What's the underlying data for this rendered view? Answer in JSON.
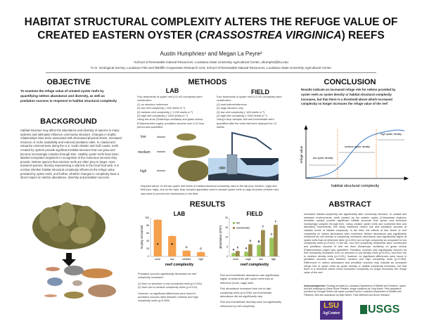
{
  "title_line1": "HABITAT STRUCTURAL COMPLEXITY ALTERS THE REFUGE VALUE OF",
  "title_line2_pre": "CREATED EASTERN OYSTER (",
  "title_line2_italic": "CRASSOSTREA VIRGINICA",
  "title_line2_post": ") REEFS",
  "authors": "Austin Humphries¹ and Megan La Peyre²",
  "affiliation1": "¹School of Renewable Natural Resources, Louisiana State University Agricultural Center, ahumph3@lsu.edu",
  "affiliation2": "²U.S. Geological Survey, Louisiana Fish and Wildlife Cooperative Research Unit, School of Renewable Natural Resources, Louisiana State University Agricultural Center",
  "objective": {
    "heading": "OBJECTIVE",
    "text": "To examine the refuge value of created oyster reefs by quantifying nekton abundance and diversity, as well as predation success in response to habitat structural complexity"
  },
  "background": {
    "heading": "BACKGROUND",
    "text": "Habitat structure may affect the abundance and diversity of species in many systems and ultimately influence community structure. Changes in trophic relationships have been associated with decreased physical stress, increased resource or niche availability and reduced predation rates. In coastal and estuarine environments along the U.S. south Atlantic and Gulf coasts, reefs created by oysters provide significant habitat structure that can grow and become increasingly complex through time. Healthy oyster reefs have been labeled ecosystem engineers in recognition of the numerous services they provide. Nekton species that colonize reefs are often prey to larger, more transient species, thereby representing a vital link in the local food web. It is unclear whether habitat structural complexity influences the refuge value provided by oyster reefs, and further, whether changes in complexity have a direct impact on nekton abundance, diversity and predation success."
  },
  "methods": {
    "heading": "METHODS",
    "lab": {
      "heading": "LAB",
      "text_intro": "Four treatments of oyster reef (0.5 m²) complexity were constructed:",
      "items": [
        "(1) no structure /reference",
        "(2) low reef complexity (~400 shells m⁻²)",
        "(3) medium reef complexity (~1,200 shells m⁻²)",
        "(4) high reef complexity (~2400 shells m⁻²)"
      ],
      "text_outro": "Using red drum (Sciaenops ocellatus) and grass shrimp (Palaemonetes pugio), predation success over a 22 hour period was quantified",
      "labels": [
        "low",
        "medium",
        "high"
      ]
    },
    "field": {
      "heading": "FIELD",
      "text_intro": "Four treatments of oyster reef (0.5 m²) complexity were constructed:",
      "items": [
        "(1)  mud bottom/reference",
        "(2)  cage structure only",
        "(3)  low reef complexity (~400 shells m⁻²)",
        "(4)  high reef complexity (~2400 shells m⁻²)"
      ],
      "text_outro": "Using a drop sampler, fish and invertebrate were quantified after the reefs had been deployed for 12 weeks"
    },
    "caption": "Depicted above on left are oyster reef levels of habitat structural complexity used in the lab (low, medium, high) and field (low, high), and on the right, drop sampler apparatus used to sample oyster reefs or cage structure (chicken wire was used to prevent reef destruction) in the field."
  },
  "results": {
    "heading": "RESULTS",
    "lab_text": [
      "Predation success significantly decreased as reef complexity increased:",
      "(1) from no structure to low complexity reefs (p<0.001)",
      "(2) from low to medium complexity reefs (p=0.011)",
      "However, no significant differences were found in predation success rates between medium and high complexity reefs (p=0.283)"
    ],
    "field_text": [
      "Fish and invertebrate abundance was significantly higher at treatments with oyster reefs than at reference (none, cage) sites",
      "Fish abundance increased from low to high complexity reefs (p=0.008), but invertebrate abundance did not significantly vary",
      "Fish and invertebrate diversity were not significantly influenced by reef complexity"
    ]
  },
  "chart_data": [
    {
      "type": "bar",
      "title": "LAB",
      "xlabel": "reef complexity",
      "ylabel": "% prey consumed",
      "ylim": [
        0,
        100
      ],
      "yticks": [
        0,
        20,
        40,
        60,
        80,
        100
      ],
      "categories": [
        "none",
        "low",
        "medium",
        "high"
      ],
      "values": [
        95,
        53,
        15,
        11
      ],
      "letters": [
        "A",
        "B",
        "C",
        "C"
      ],
      "color": "#f5a04b",
      "grid": false
    },
    {
      "type": "bar",
      "title": "FIELD",
      "xlabel": "reef complexity",
      "ylabel": "abundance (#/m²)",
      "ylim": [
        0,
        20
      ],
      "yticks": [
        0,
        5,
        10,
        15,
        20
      ],
      "categories": [
        "none",
        "cage",
        "low",
        "high"
      ],
      "legend": "top-left",
      "series": [
        {
          "name": "fish",
          "values": [
            1.7,
            2.4,
            5.9,
            9.6
          ],
          "letters": [
            "A",
            "A",
            "B",
            "C"
          ],
          "color": "#9bc55b"
        },
        {
          "name": "invertebrates",
          "values": [
            2.8,
            6.3,
            13.6,
            16.3
          ],
          "letters": [
            "X",
            "X",
            "Y",
            "Y"
          ],
          "color": "#9c8a4d"
        }
      ],
      "grid": false
    }
  ],
  "conclusion": {
    "heading": "CONCLUSION",
    "text": "Results indicate an increased refuge role for nekton provided by oyster reefs as oyster density or habitat structural complexity increases, but that there is a threshold above which increased complexity no longer increases the refuge value of the reef",
    "diagram": {
      "ylabel": "refuge value",
      "xlabel": "habitat structural complexity",
      "zones": [
        "low oyster density",
        "medium oyster density",
        "high oyster density"
      ]
    }
  },
  "abstract": {
    "heading": "ABSTRACT",
    "text": "Increased habitat complexity can significantly alter community structure. In coastal and estuarine environments, reefs created by the eastern oyster (Crassostrea virginica; hereafter oyster) provide significant habitat structure that grows and becomes increasingly complex through time. Using created oyster reefs and combined field and laboratory experiments, this study examined nekton use and predation success at variable levels of habitat complexity. In the field, the effects of four levels of reef complexity on nekton abundance were examined. Nekton abundance was significantly enhanced as reef density or complexity increased; abundance was significantly higher at oyster reefs than at reference sites (p<0.001) and at high complexity as compared to low complexity reefs (p=0.021). In the lab, four reef complexity treatments were constructed and predation success of wild red drum (Sciaenops ocellatus) on grass shrimp (Palaemonetes pugio) was quantified. Predation success was significantly reduced as reef complexity increased: from no structure to low density reefs (p<0.001), and from low to medium density reefs (p=0.011); however, no significant differences were found in predation success rates between medium and high complexity reefs (p=0.283). Differences in nekton abundance and predation success may indicate an increased refuge role of oyster reefs as oyster density or habitat complexity increases, but that there is a threshold above which increased complexity no longer increases the refuge value of the reef.",
    "ack_label": "Acknowledgments:",
    "ack": "Funding provided by Louisiana Department of Wildlife and Fisheries, oyster and fish drawings by Diane Rome Peebles, image creations by Greg Harris. Field assistance provided by Georgia Hebert, lab space provided by the Louisiana Department of Wildlife and Fisheries, field site assistance by Matt Hilbert, Thea Witherell and Bruce Hillmann."
  },
  "logos": {
    "lsu_top": "LSU",
    "lsu_bottom": "AgCenter",
    "usgs": "USGS"
  }
}
